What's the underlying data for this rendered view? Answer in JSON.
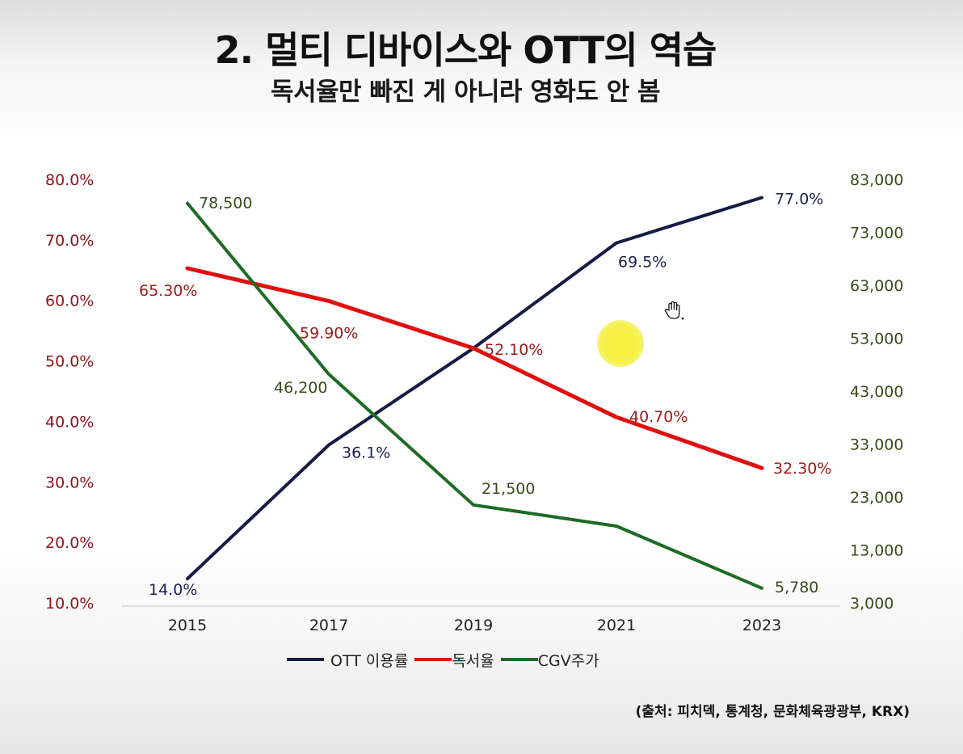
{
  "header": {
    "title": "2. 멀티 디바이스와 OTT의 역습",
    "subtitle": "독서율만 빠진 게 아니라 영화도 안 봄"
  },
  "chart_data": {
    "type": "line",
    "title": "2. 멀티 디바이스와 OTT의 역습",
    "subtitle": "독서율만 빠진 게 아니라 영화도 안 봄",
    "x": [
      "2015",
      "2017",
      "2019",
      "2021",
      "2023"
    ],
    "left_axis": {
      "ticks": [
        "10.0%",
        "20.0%",
        "30.0%",
        "40.0%",
        "50.0%",
        "60.0%",
        "70.0%",
        "80.0%"
      ],
      "ylim": [
        10,
        80
      ]
    },
    "right_axis": {
      "ticks": [
        "3,000",
        "13,000",
        "23,000",
        "33,000",
        "43,000",
        "53,000",
        "63,000",
        "73,000",
        "83,000"
      ],
      "ylim": [
        3000,
        83000
      ]
    },
    "series": [
      {
        "name": "OTT 이용률",
        "axis": "left",
        "color": "#161a45",
        "values": [
          14.0,
          36.1,
          52.1,
          69.5,
          77.0
        ],
        "labels": [
          "14.0%",
          "36.1%",
          "",
          "69.5%",
          "77.0%"
        ]
      },
      {
        "name": "독서율",
        "axis": "left",
        "color": "#e01010",
        "values": [
          65.3,
          59.9,
          52.1,
          40.7,
          32.3
        ],
        "labels": [
          "65.30%",
          "59.90%",
          "52.10%",
          "40.70%",
          "32.30%"
        ]
      },
      {
        "name": "CGV주가",
        "axis": "right",
        "color": "#1e6b24",
        "values": [
          78500,
          46200,
          21500,
          17500,
          5780
        ],
        "labels": [
          "78,500",
          "46,200",
          "21,500",
          "",
          "5,780"
        ]
      }
    ],
    "legend": [
      "OTT 이용률",
      "독서율",
      "CGV주가"
    ],
    "legend_position": "bottom",
    "source": "(출처: 피치덱, 통계청, 문화체육광광부, KRX)"
  }
}
